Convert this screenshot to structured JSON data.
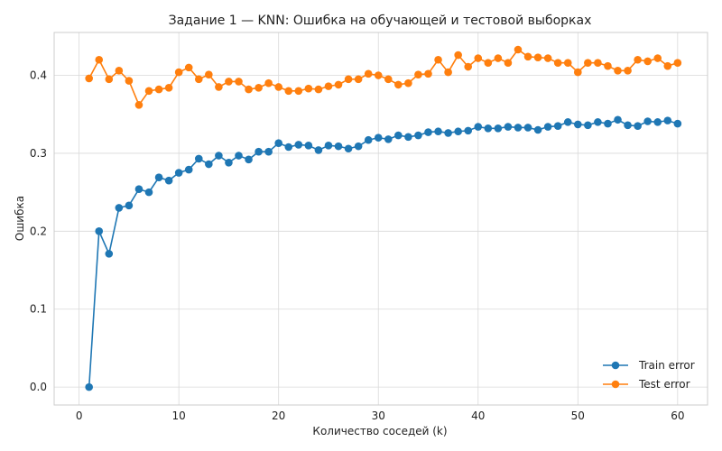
{
  "chart_data": {
    "type": "line",
    "title": "Задание 1 — KNN: Ошибка на обучающей и тестовой выборках",
    "xlabel": "Количество соседей (k)",
    "ylabel": "Ошибка",
    "xlim": [
      -2.5,
      63.0
    ],
    "ylim": [
      -0.023,
      0.455
    ],
    "xticks": [
      0,
      10,
      20,
      30,
      40,
      50,
      60
    ],
    "yticks": [
      0.0,
      0.1,
      0.2,
      0.3,
      0.4
    ],
    "xtick_labels": [
      "0",
      "10",
      "20",
      "30",
      "40",
      "50",
      "60"
    ],
    "ytick_labels": [
      "0.0",
      "0.1",
      "0.2",
      "0.3",
      "0.4"
    ],
    "grid": true,
    "legend_position": "bottom-right",
    "x": [
      1,
      2,
      3,
      4,
      5,
      6,
      7,
      8,
      9,
      10,
      11,
      12,
      13,
      14,
      15,
      16,
      17,
      18,
      19,
      20,
      21,
      22,
      23,
      24,
      25,
      26,
      27,
      28,
      29,
      30,
      31,
      32,
      33,
      34,
      35,
      36,
      37,
      38,
      39,
      40,
      41,
      42,
      43,
      44,
      45,
      46,
      47,
      48,
      49,
      50,
      51,
      52,
      53,
      54,
      55,
      56,
      57,
      58,
      59,
      60
    ],
    "series": [
      {
        "name": "Train error",
        "color": "#1f77b4",
        "values": [
          0.0,
          0.2,
          0.171,
          0.23,
          0.233,
          0.254,
          0.25,
          0.269,
          0.265,
          0.275,
          0.279,
          0.293,
          0.286,
          0.297,
          0.288,
          0.297,
          0.292,
          0.302,
          0.302,
          0.313,
          0.308,
          0.311,
          0.31,
          0.304,
          0.31,
          0.309,
          0.306,
          0.309,
          0.317,
          0.32,
          0.318,
          0.323,
          0.321,
          0.323,
          0.327,
          0.328,
          0.326,
          0.328,
          0.329,
          0.334,
          0.332,
          0.332,
          0.334,
          0.333,
          0.333,
          0.33,
          0.334,
          0.335,
          0.34,
          0.337,
          0.336,
          0.34,
          0.338,
          0.343,
          0.336,
          0.335,
          0.341,
          0.34,
          0.342,
          0.338
        ]
      },
      {
        "name": "Test error",
        "color": "#ff7f0e",
        "values": [
          0.396,
          0.42,
          0.395,
          0.406,
          0.393,
          0.362,
          0.38,
          0.382,
          0.384,
          0.404,
          0.41,
          0.395,
          0.401,
          0.385,
          0.392,
          0.392,
          0.382,
          0.384,
          0.39,
          0.385,
          0.38,
          0.38,
          0.383,
          0.382,
          0.386,
          0.388,
          0.395,
          0.395,
          0.402,
          0.4,
          0.395,
          0.388,
          0.39,
          0.401,
          0.402,
          0.42,
          0.404,
          0.426,
          0.411,
          0.422,
          0.416,
          0.422,
          0.416,
          0.433,
          0.424,
          0.423,
          0.422,
          0.416,
          0.416,
          0.404,
          0.416,
          0.416,
          0.412,
          0.406,
          0.406,
          0.42,
          0.418,
          0.422,
          0.412,
          0.416
        ]
      }
    ]
  }
}
